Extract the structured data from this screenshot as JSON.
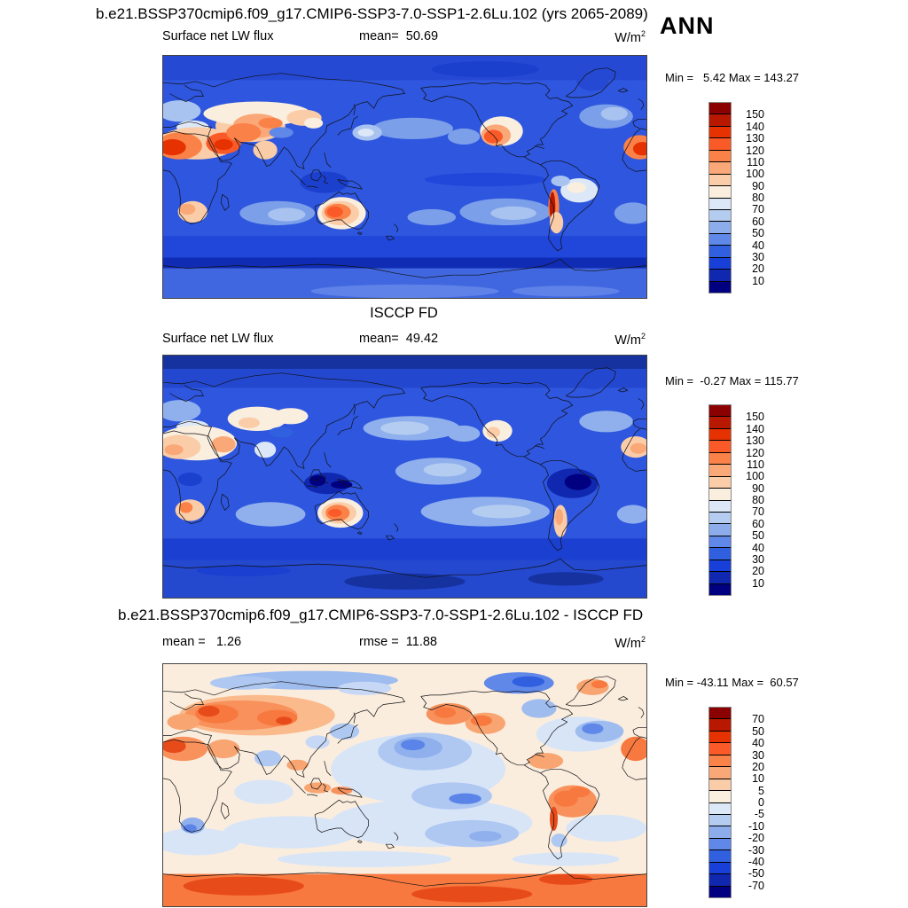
{
  "figure": {
    "main_title": "b.e21.BSSP370cmip6.f09_g17.CMIP6-SSP3-7.0-SSP1-2.6Lu.102 (yrs 2065-2089)",
    "season_label": "ANN"
  },
  "panels": [
    {
      "variable_label": "Surface net LW flux",
      "stat_label": "mean=  50.69",
      "units_base": "W/m",
      "units_exp": "2",
      "minmax_label": "Min =   5.42 Max = 143.27"
    },
    {
      "title": "ISCCP FD",
      "variable_label": "Surface net LW flux",
      "stat_label": "mean=  49.42",
      "units_base": "W/m",
      "units_exp": "2",
      "minmax_label": "Min =  -0.27 Max = 115.77"
    },
    {
      "title": "b.e21.BSSP370cmip6.f09_g17.CMIP6-SSP3-7.0-SSP1-2.6Lu.102 - ISCCP FD",
      "stat_label": "mean =   1.26",
      "stat2_label": "rmse =  11.88",
      "units_base": "W/m",
      "units_exp": "2",
      "minmax_label": "Min = -43.11 Max =  60.57"
    }
  ],
  "colorbar": {
    "colors_top_to_bottom": [
      "#8B0000",
      "#B81800",
      "#E63200",
      "#FA5A28",
      "#FA8248",
      "#FAA878",
      "#FACDA8",
      "#FAEEDE",
      "#DCE8F8",
      "#B4CCF0",
      "#8CACEC",
      "#6088E8",
      "#3060E0",
      "#1840D8",
      "#1028B0",
      "#000080"
    ],
    "flux_ticks": [
      "150",
      "140",
      "130",
      "120",
      "110",
      "100",
      "90",
      "80",
      "70",
      "60",
      "50",
      "40",
      "30",
      "20",
      "10"
    ],
    "diff_ticks": [
      "70",
      "50",
      "40",
      "30",
      "20",
      "10",
      "5",
      "0",
      "-5",
      "-10",
      "-20",
      "-30",
      "-40",
      "-50",
      "-70"
    ]
  },
  "chart_data": [
    {
      "type": "heatmap",
      "subtype": "global filled-contour map, Pacific-centered cylindrical projection",
      "title": "b.e21.BSSP370cmip6.f09_g17.CMIP6-SSP3-7.0-SSP1-2.6Lu.102 (yrs 2065-2089)",
      "season": "ANN",
      "variable": "Surface net LW flux",
      "units": "W/m2",
      "stats": {
        "mean": 50.69,
        "min": 5.42,
        "max": 143.27
      },
      "colorbar_ticks": [
        150,
        140,
        130,
        120,
        110,
        100,
        90,
        80,
        70,
        60,
        50,
        40,
        30,
        20,
        10
      ],
      "legend_position": "right",
      "pattern_notes": "high values (red/orange) over Sahara, Arabia, central Asia, SW North America, southern Africa, Australia and the Andes; low values (blues) over oceans and polar regions"
    },
    {
      "type": "heatmap",
      "subtype": "global filled-contour map, Pacific-centered cylindrical projection",
      "title": "ISCCP FD",
      "season": "ANN",
      "variable": "Surface net LW flux",
      "units": "W/m2",
      "stats": {
        "mean": 49.42,
        "min": -0.27,
        "max": 115.77
      },
      "colorbar_ticks": [
        150,
        140,
        130,
        120,
        110,
        100,
        90,
        80,
        70,
        60,
        50,
        40,
        30,
        20,
        10
      ],
      "legend_position": "right",
      "pattern_notes": "muted desert maxima (peach/orange over Sahara, Australia, Namibia); deep minima (navy) over Amazon, equatorial Atlantic and Maritime Continent"
    },
    {
      "type": "heatmap",
      "subtype": "difference map (model minus ISCCP FD)",
      "title": "b.e21.BSSP370cmip6.f09_g17.CMIP6-SSP3-7.0-SSP1-2.6Lu.102 - ISCCP FD",
      "season": "ANN",
      "variable": "Surface net LW flux difference",
      "units": "W/m2",
      "stats": {
        "mean": 1.26,
        "rmse": 11.88,
        "min": -43.11,
        "max": 60.57
      },
      "colorbar_ticks": [
        70,
        50,
        40,
        30,
        20,
        10,
        5,
        0,
        -5,
        -10,
        -20,
        -30,
        -40,
        -50,
        -70
      ],
      "legend_position": "right",
      "pattern_notes": "positive differences (orange) over Eurasia, Antarctica, South America and Greenland; negative differences (blue) over central Pacific, Arctic archipelago, India and subtropical oceans"
    }
  ]
}
